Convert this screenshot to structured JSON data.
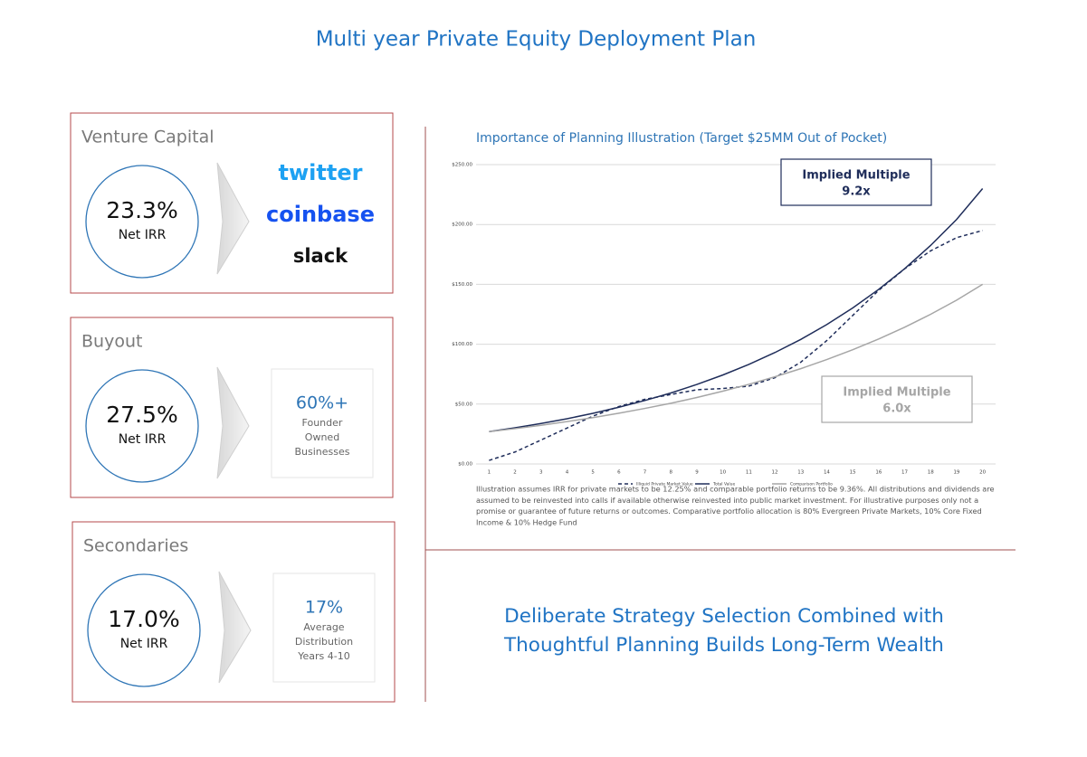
{
  "header": {
    "title": "Multi year Private Equity Deployment Plan"
  },
  "cards": [
    {
      "title": "Venture Capital",
      "irr": "23.3%",
      "irr_label": "Net IRR",
      "logos": [
        "twitter",
        "coinbase",
        "slack"
      ]
    },
    {
      "title": "Buyout",
      "irr": "27.5%",
      "irr_label": "Net IRR",
      "highlight": "60%+",
      "highlight_text": [
        "Founder",
        "Owned",
        "Businesses"
      ]
    },
    {
      "title": "Secondaries",
      "irr": "17.0%",
      "irr_label": "Net IRR",
      "highlight": "17%",
      "highlight_text": [
        "Average",
        "Distribution",
        "Years 4-10"
      ]
    }
  ],
  "chart_data": {
    "type": "line",
    "title": "Importance of Planning Illustration (Target $25MM Out of Pocket)",
    "x": [
      1,
      2,
      3,
      4,
      5,
      6,
      7,
      8,
      9,
      10,
      11,
      12,
      13,
      14,
      15,
      16,
      17,
      18,
      19,
      20
    ],
    "xlim": [
      0.5,
      20.5
    ],
    "xticks": [
      1,
      2,
      3,
      4,
      5,
      6,
      7,
      8,
      9,
      10,
      11,
      12,
      13,
      14,
      15,
      16,
      17,
      18,
      19,
      20
    ],
    "ylim": [
      0,
      250
    ],
    "yticks": [
      {
        "value": 0,
        "label": "$0.00"
      },
      {
        "value": 50,
        "label": "$50.00"
      },
      {
        "value": 100,
        "label": "$100.00"
      },
      {
        "value": 150,
        "label": "$150.00"
      },
      {
        "value": 200,
        "label": "$200.00"
      },
      {
        "value": 250,
        "label": "$250.00"
      }
    ],
    "grid": true,
    "series": [
      {
        "name": "Illiquid Private Market Value",
        "color": "#1f2d5a",
        "style": "dashed",
        "values": [
          3,
          10,
          20,
          30,
          40,
          48,
          54,
          58,
          62,
          63,
          65,
          72,
          85,
          103,
          124,
          145,
          163,
          178,
          189,
          195
        ]
      },
      {
        "name": "Total Value",
        "color": "#1f2d5a",
        "style": "solid",
        "values": [
          27,
          30.2,
          33.8,
          37.8,
          42.3,
          47.4,
          53,
          59.3,
          66.4,
          74.3,
          83.1,
          93,
          104,
          116.4,
          130.3,
          145.8,
          163.1,
          182.5,
          204.2,
          230
        ]
      },
      {
        "name": "Comparison Portfolio",
        "color": "#a6a6a6",
        "style": "solid",
        "values": [
          27,
          29.5,
          32.3,
          35.4,
          38.7,
          42.4,
          46.4,
          50.7,
          55.5,
          60.8,
          66.5,
          72.8,
          79.6,
          87.2,
          95.4,
          104.4,
          114.2,
          125,
          136.8,
          150
        ]
      }
    ],
    "annotations": [
      {
        "text": "Implied Multiple",
        "value": "9.2x",
        "color": "#1f2d5a"
      },
      {
        "text": "Implied Multiple",
        "value": "6.0x",
        "color": "#a6a6a6"
      }
    ],
    "footnote": [
      "Illustration assumes IRR for private markets to be 12.25% and comparable portfolio returns to be 9.36%. All distributions and dividends are",
      "assumed to be reinvested into calls if available otherwise reinvested into public market investment. For illustrative purposes only not a",
      "promise or guarantee of future returns or outcomes. Comparative portfolio allocation is 80% Evergreen Private Markets, 10% Core Fixed",
      "Income & 10% Hedge Fund"
    ]
  },
  "tagline": [
    "Deliberate Strategy Selection Combined with",
    "Thoughtful Planning Builds Long-Term Wealth"
  ]
}
